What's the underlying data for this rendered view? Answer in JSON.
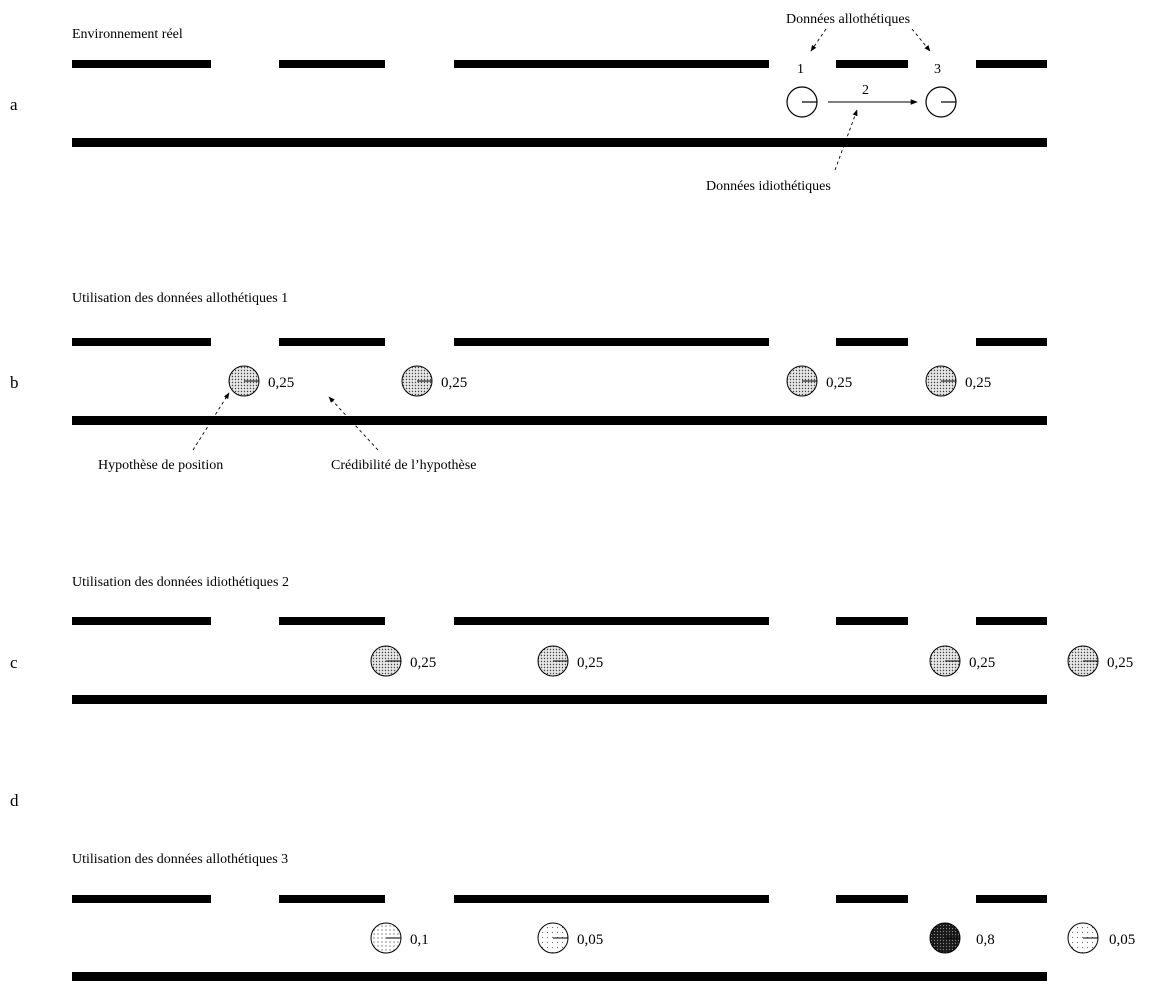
{
  "colors": {
    "wall": "#000000",
    "robot_stroke": "#000000",
    "dark_fill": "#1a1a1a"
  },
  "panels": [
    {
      "letter": "a",
      "title": "Environnement réel",
      "step_labels": [
        "1",
        "2",
        "3"
      ],
      "annotations": {
        "allothetic": "Données allothétiques",
        "idiothetic": "Données idiothétiques"
      }
    },
    {
      "letter": "b",
      "title": "Utilisation des données allothétiques 1",
      "hypotheses": [
        {
          "value": "0,25",
          "credibility": 0.25
        },
        {
          "value": "0,25",
          "credibility": 0.25
        },
        {
          "value": "0,25",
          "credibility": 0.25
        },
        {
          "value": "0,25",
          "credibility": 0.25
        }
      ],
      "annotations": {
        "position": "Hypothèse de position",
        "credibility": "Crédibilité de l’hypothèse"
      }
    },
    {
      "letter": "c",
      "title": "Utilisation des données idiothétiques 2",
      "hypotheses": [
        {
          "value": "0,25",
          "credibility": 0.25
        },
        {
          "value": "0,25",
          "credibility": 0.25
        },
        {
          "value": "0,25",
          "credibility": 0.25
        },
        {
          "value": "0,25",
          "credibility": 0.25
        }
      ]
    },
    {
      "letter": "d",
      "title": "Utilisation des données allothétiques 3",
      "hypotheses": [
        {
          "value": "0,1",
          "credibility": 0.1
        },
        {
          "value": "0,05",
          "credibility": 0.05
        },
        {
          "value": "0,8",
          "credibility": 0.8
        },
        {
          "value": "0,05",
          "credibility": 0.05
        }
      ]
    }
  ]
}
